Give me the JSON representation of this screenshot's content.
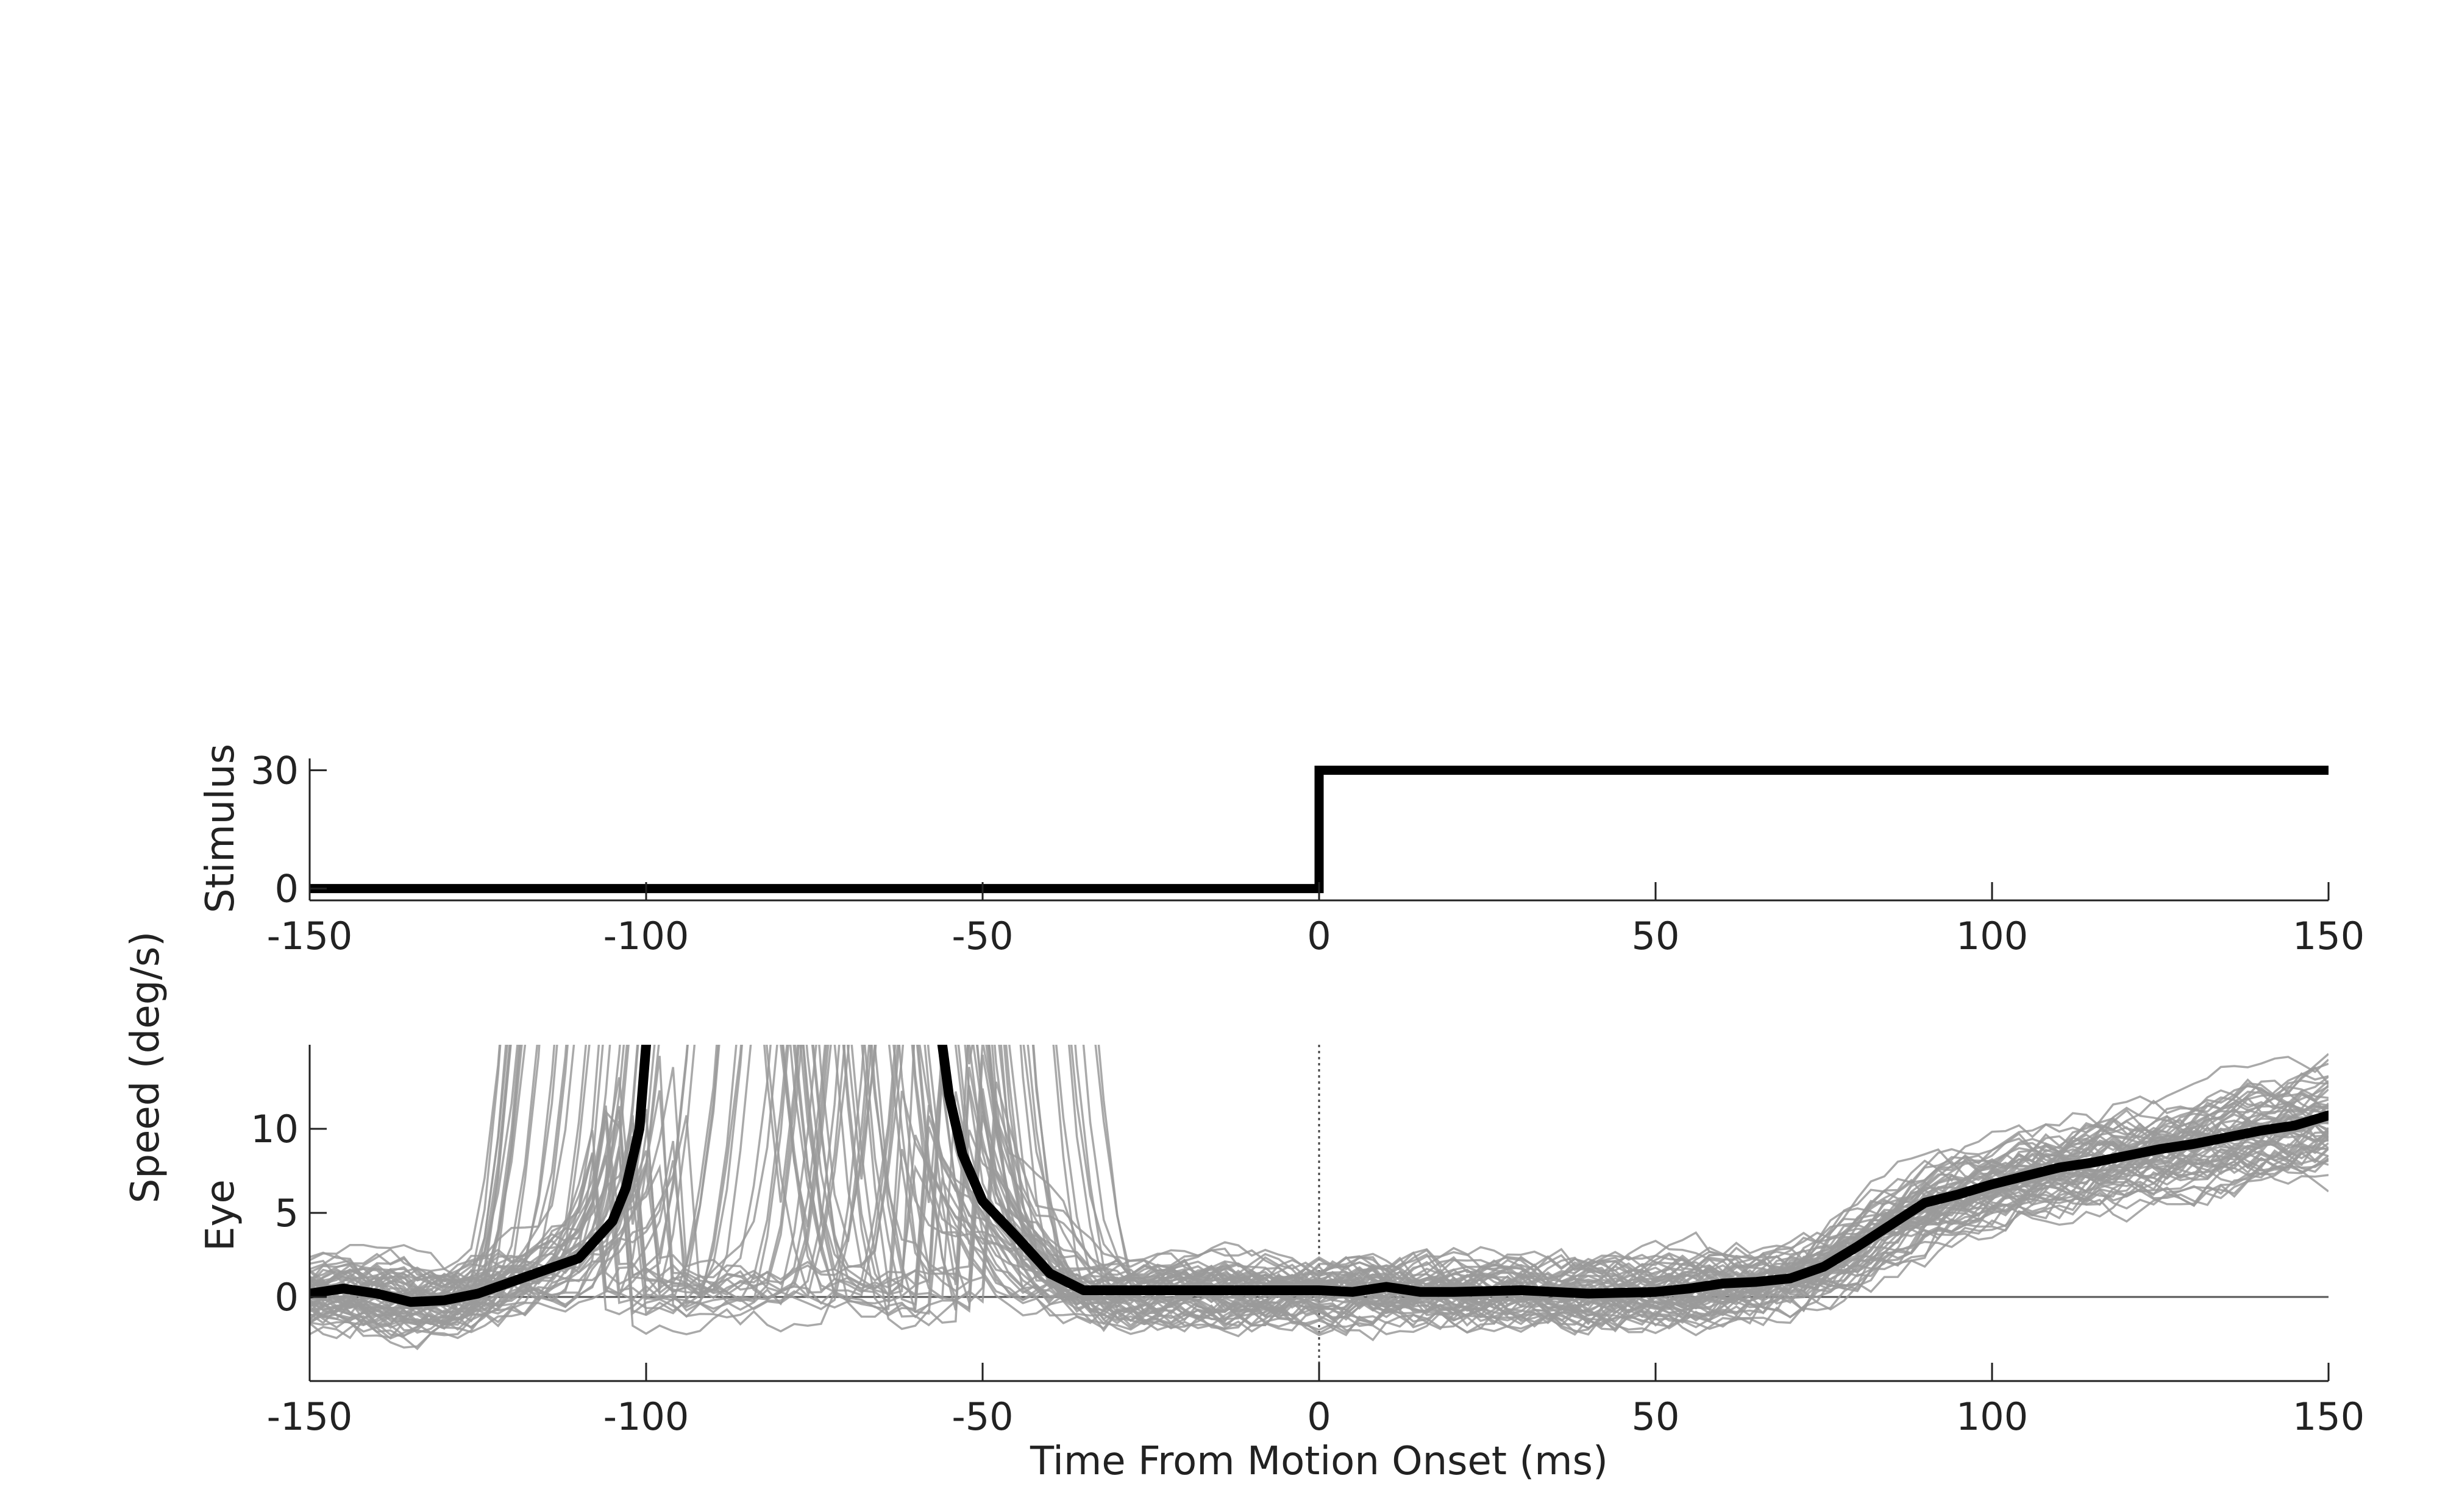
{
  "chart_data": [
    {
      "type": "line",
      "id": "stimulus",
      "ylabel": "Stimulus",
      "xlim": [
        -150,
        150
      ],
      "ylim": [
        -3,
        33
      ],
      "xticks": [
        -150,
        -100,
        -50,
        0,
        50,
        100,
        150
      ],
      "yticks": [
        0,
        30
      ],
      "series": [
        {
          "color": "#000000",
          "x": [
            -150,
            0,
            0,
            150
          ],
          "y": [
            0,
            0,
            30,
            30
          ]
        }
      ]
    },
    {
      "type": "line",
      "id": "eye",
      "ylabel": "Eye",
      "shared_ylabel": "Speed (deg/s)",
      "xlabel": "Time From Motion Onset (ms)",
      "xlim": [
        -150,
        150
      ],
      "ylim": [
        -5,
        15
      ],
      "xticks": [
        -150,
        -100,
        -50,
        0,
        50,
        100,
        150
      ],
      "yticks": [
        0,
        5,
        10
      ],
      "zero_line": true,
      "onset_marker_x": 0,
      "mean_color": "#000000",
      "trial_color": "#9a9a9a",
      "trial_count": 60,
      "saccade_gap_ms": [
        -100,
        -56
      ],
      "mean": {
        "x": [
          -150,
          -145,
          -140,
          -135,
          -130,
          -125,
          -120,
          -115,
          -110,
          -105,
          -103,
          -101,
          -100,
          -56,
          -55,
          -53,
          -50,
          -45,
          -40,
          -35,
          -30,
          -20,
          -10,
          0,
          5,
          10,
          15,
          20,
          30,
          40,
          50,
          55,
          60,
          65,
          70,
          75,
          80,
          85,
          90,
          95,
          100,
          105,
          110,
          115,
          120,
          125,
          130,
          135,
          140,
          145,
          150
        ],
        "y": [
          0.2,
          0.5,
          0.2,
          -0.3,
          -0.2,
          0.2,
          0.9,
          1.6,
          2.3,
          4.5,
          6.5,
          10.0,
          15.0,
          15.0,
          12.0,
          8.5,
          5.7,
          3.6,
          1.4,
          0.4,
          0.4,
          0.4,
          0.4,
          0.4,
          0.3,
          0.6,
          0.3,
          0.3,
          0.4,
          0.2,
          0.3,
          0.5,
          0.8,
          0.9,
          1.1,
          1.8,
          3.0,
          4.3,
          5.6,
          6.1,
          6.7,
          7.2,
          7.7,
          8.0,
          8.4,
          8.8,
          9.1,
          9.5,
          9.9,
          10.2,
          10.8
        ]
      }
    }
  ]
}
